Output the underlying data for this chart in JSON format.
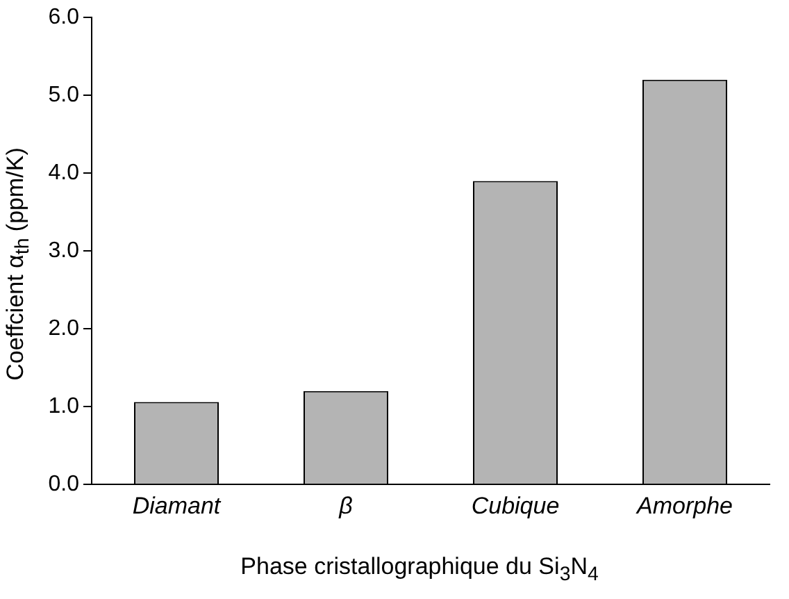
{
  "chart_data": {
    "type": "bar",
    "xlabel": "Phase cristallographique du Si$_{3}$N$_{4}$",
    "ylabel": "Coeffcient α$_{th}$ (ppm/K)",
    "categories": [
      "Diamant",
      "β",
      "Cubique",
      "Amorphe"
    ],
    "values": [
      1.06,
      1.2,
      3.9,
      5.2
    ],
    "color": "#b4b4b4",
    "ylim": [
      0,
      6
    ],
    "yticks": [
      {
        "value": 0,
        "label": "0.0"
      },
      {
        "value": 1,
        "label": "1.0"
      },
      {
        "value": 2,
        "label": "2.0"
      },
      {
        "value": 3,
        "label": "3.0"
      },
      {
        "value": 4,
        "label": "4.0"
      },
      {
        "value": 5,
        "label": "5.0"
      },
      {
        "value": 6,
        "label": "6.0"
      }
    ],
    "grid": false,
    "legend": false
  }
}
